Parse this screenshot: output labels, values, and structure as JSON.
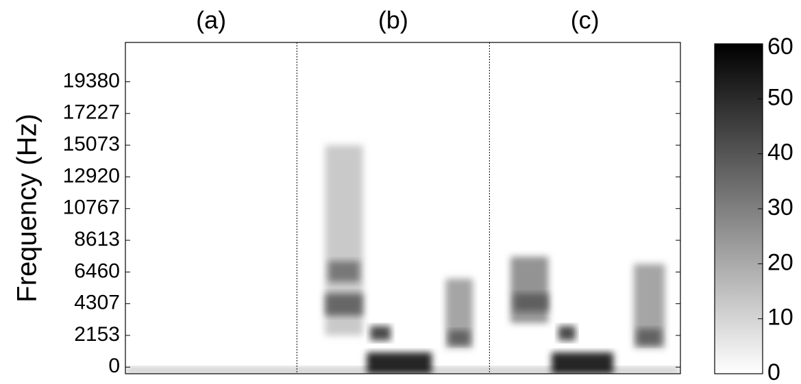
{
  "chart_data": {
    "type": "spectrogram",
    "ylabel": "Frequency (Hz)",
    "panels": [
      "(a)",
      "(b)",
      "(c)"
    ],
    "xlim": [
      0,
      1
    ],
    "dividers": [
      0.309,
      0.656
    ],
    "ylim": [
      -450,
      22050
    ],
    "yticks": [
      0,
      2153,
      4307,
      6460,
      8613,
      10767,
      12920,
      15073,
      17227,
      19380
    ],
    "clim": [
      0,
      60
    ],
    "cticks": [
      0,
      10,
      20,
      30,
      40,
      50,
      60
    ],
    "colormap": [
      "#ffffff",
      "#000000"
    ],
    "blobs": [
      {
        "x": [
          0.0,
          1.0
        ],
        "y": [
          -450,
          0
        ],
        "level": 15
      },
      {
        "x": [
          0.36,
          0.428
        ],
        "y": [
          2153,
          15073
        ],
        "level": 15
      },
      {
        "x": [
          0.36,
          0.428
        ],
        "y": [
          3500,
          5000
        ],
        "level": 40
      },
      {
        "x": [
          0.366,
          0.422
        ],
        "y": [
          5800,
          7200
        ],
        "level": 35
      },
      {
        "x": [
          0.435,
          0.552
        ],
        "y": [
          -450,
          1000
        ],
        "level": 60
      },
      {
        "x": [
          0.441,
          0.478
        ],
        "y": [
          1800,
          2800
        ],
        "level": 50
      },
      {
        "x": [
          0.577,
          0.626
        ],
        "y": [
          1300,
          6000
        ],
        "level": 25
      },
      {
        "x": [
          0.583,
          0.62
        ],
        "y": [
          1500,
          2500
        ],
        "level": 40
      },
      {
        "x": [
          0.694,
          0.762
        ],
        "y": [
          3000,
          7500
        ],
        "level": 30
      },
      {
        "x": [
          0.7,
          0.762
        ],
        "y": [
          3800,
          5000
        ],
        "level": 40
      },
      {
        "x": [
          0.768,
          0.879
        ],
        "y": [
          -450,
          1000
        ],
        "level": 60
      },
      {
        "x": [
          0.78,
          0.811
        ],
        "y": [
          1800,
          2800
        ],
        "level": 50
      },
      {
        "x": [
          0.916,
          0.972
        ],
        "y": [
          1300,
          7000
        ],
        "level": 25
      },
      {
        "x": [
          0.922,
          0.965
        ],
        "y": [
          1500,
          2600
        ],
        "level": 40
      }
    ]
  }
}
